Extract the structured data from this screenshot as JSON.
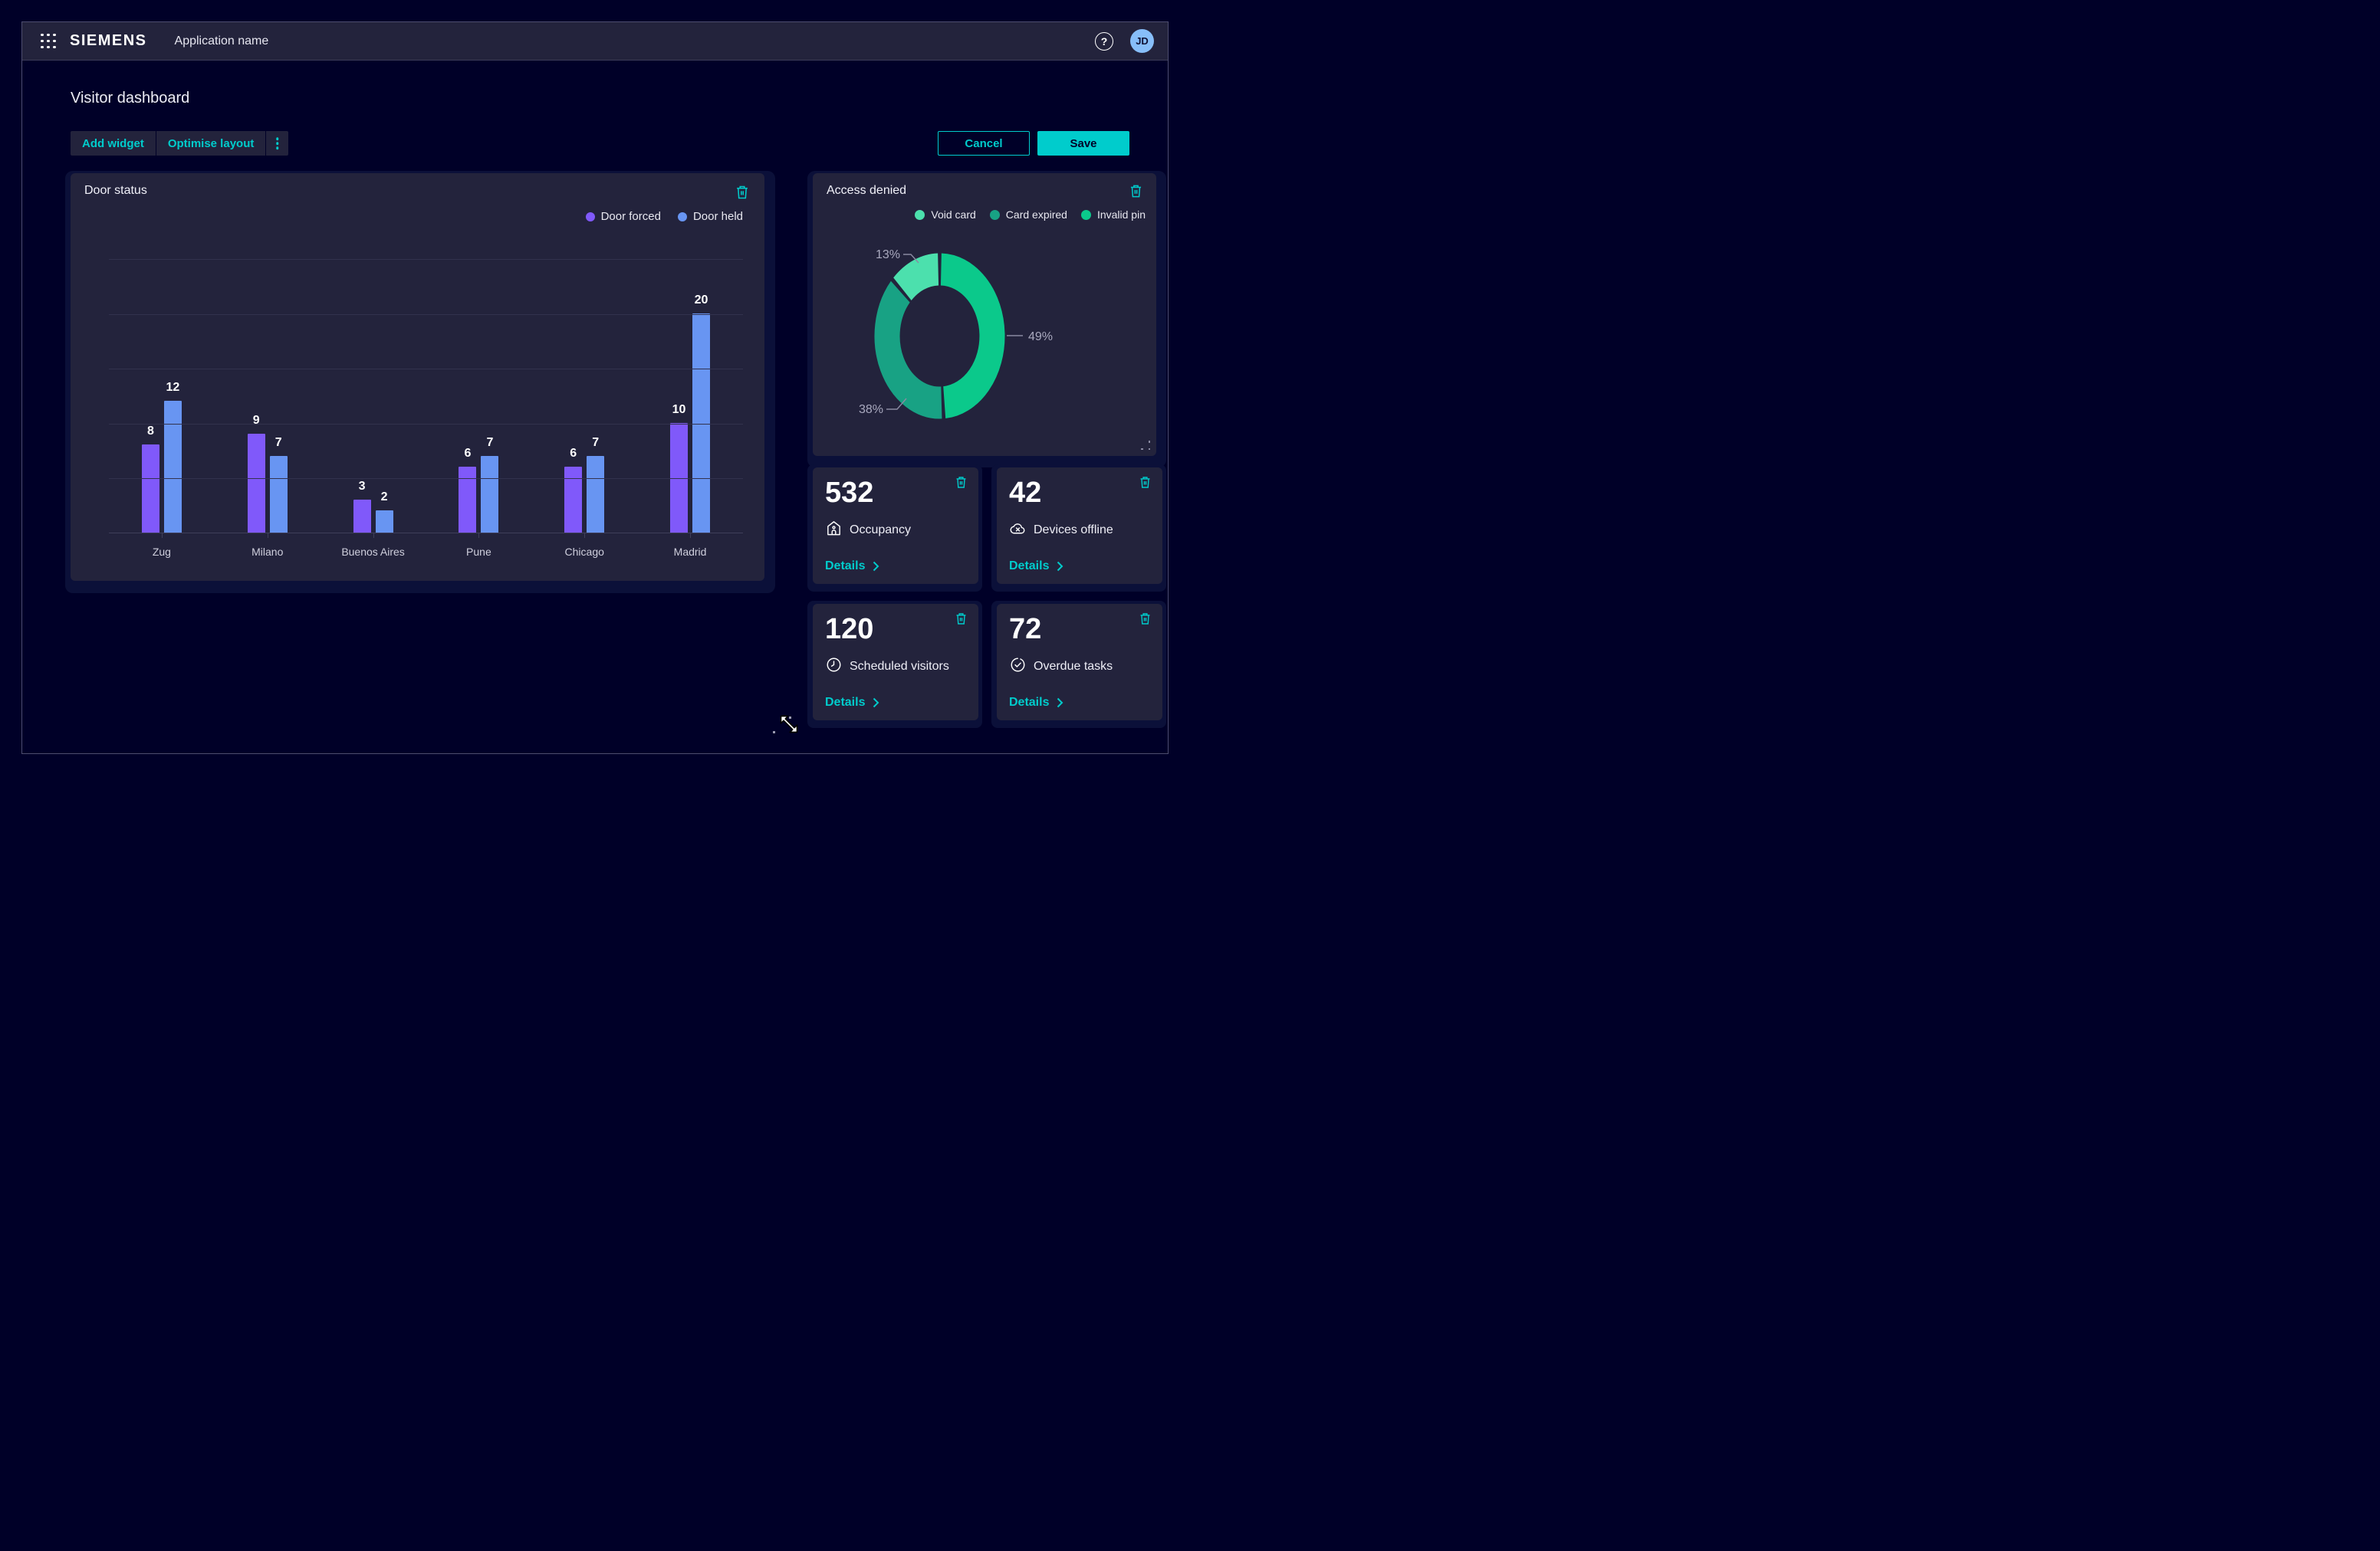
{
  "header": {
    "logo": "SIEMENS",
    "app_name": "Application name",
    "avatar_initials": "JD"
  },
  "page": {
    "title": "Visitor dashboard"
  },
  "toolbar": {
    "add_widget": "Add widget",
    "optimise_layout": "Optimise layout",
    "cancel": "Cancel",
    "save": "Save"
  },
  "colors": {
    "accent": "#00cccc",
    "page_bg": "#000028",
    "card_bg": "#23233c",
    "halo_bg": "#0b1039",
    "bar_purple": "#8059fa",
    "bar_blue": "#6895f2",
    "donut_bright": "#0bc98b",
    "donut_medium": "#18a284",
    "donut_light": "#4ce0ad"
  },
  "door_status": {
    "title": "Door status",
    "legend": [
      {
        "label": "Door forced",
        "color": "#8059fa"
      },
      {
        "label": "Door held",
        "color": "#6895f2"
      }
    ]
  },
  "access_denied": {
    "title": "Access denied",
    "legend": [
      {
        "label": "Void card",
        "color": "#4ce0ad"
      },
      {
        "label": "Card expired",
        "color": "#18a284"
      },
      {
        "label": "Invalid pin",
        "color": "#0bc98b"
      }
    ]
  },
  "kpis": [
    {
      "value": "532",
      "label": "Occupancy"
    },
    {
      "value": "42",
      "label": "Devices offline"
    },
    {
      "value": "120",
      "label": "Scheduled visitors"
    },
    {
      "value": "72",
      "label": "Overdue tasks"
    }
  ],
  "details_label": "Details",
  "chart_data": [
    {
      "type": "bar",
      "title": "Door status",
      "categories": [
        "Zug",
        "Milano",
        "Buenos Aires",
        "Pune",
        "Chicago",
        "Madrid"
      ],
      "series": [
        {
          "name": "Door forced",
          "color": "#8059fa",
          "values": [
            8,
            9,
            3,
            6,
            6,
            10
          ]
        },
        {
          "name": "Door held",
          "color": "#6895f2",
          "values": [
            12,
            7,
            2,
            7,
            7,
            20
          ]
        }
      ],
      "ylim": [
        0,
        25
      ],
      "gridline_step": 5,
      "grid": true,
      "value_labels": true,
      "legend_position": "top-right"
    },
    {
      "type": "pie",
      "donut": true,
      "title": "Access denied",
      "start_angle": "top",
      "clockwise": true,
      "slices": [
        {
          "label": "Invalid pin",
          "value": 49,
          "display": "49%",
          "color": "#0bc98b"
        },
        {
          "label": "Card expired",
          "value": 38,
          "display": "38%",
          "color": "#18a284"
        },
        {
          "label": "Void card",
          "value": 13,
          "display": "13%",
          "color": "#4ce0ad"
        }
      ],
      "legend_position": "top-right"
    }
  ]
}
